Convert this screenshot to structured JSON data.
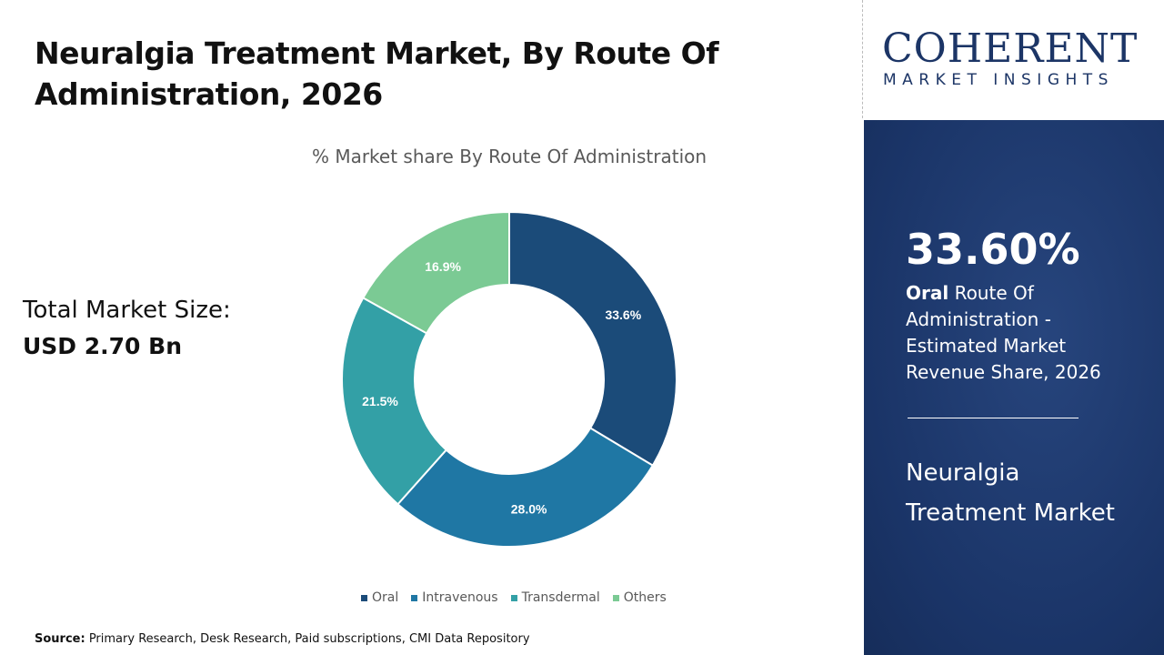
{
  "title": "Neuralgia Treatment Market, By Route Of Administration, 2026",
  "total_market": {
    "label": "Total Market Size:",
    "value": "USD 2.70 Bn"
  },
  "source": {
    "label": "Source:",
    "text": " Primary Research, Desk Research, Paid subscriptions, CMI Data Repository"
  },
  "logo": {
    "main": "COHERENT",
    "sub": "MARKET INSIGHTS"
  },
  "panel": {
    "kpi": "33.60%",
    "segment": "Oral",
    "desc": " Route Of Administration - Estimated Market Revenue Share, 2026",
    "market": "Neuralgia Treatment Market"
  },
  "chart_data": {
    "type": "pie",
    "donut": true,
    "title": "% Market share By Route Of Administration",
    "categories": [
      "Oral",
      "Intravenous",
      "Transdermal",
      "Others"
    ],
    "values": [
      33.6,
      28.0,
      21.5,
      16.9
    ],
    "labels": [
      "33.6%",
      "28.0%",
      "21.5%",
      "16.9%"
    ],
    "colors": [
      "#1b4b79",
      "#1f77a4",
      "#33a0a6",
      "#7bca94"
    ],
    "legend": "bottom"
  }
}
